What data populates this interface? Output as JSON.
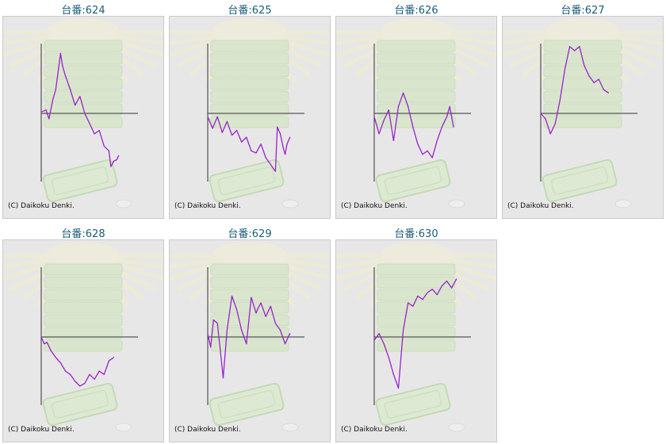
{
  "machines": [
    {
      "title": "台番:624",
      "copyright": "(C) Daikoku Denki."
    },
    {
      "title": "台番:625",
      "copyright": "(C) Daikoku Denki."
    },
    {
      "title": "台番:626",
      "copyright": "(C) Daikoku Denki."
    },
    {
      "title": "台番:627",
      "copyright": "(C) Daikoku Denki."
    },
    {
      "title": "台番:628",
      "copyright": "(C) Daikoku Denki."
    },
    {
      "title": "台番:629",
      "copyright": "(C) Daikoku Denki."
    },
    {
      "title": "台番:630",
      "copyright": "(C) Daikoku Denki."
    }
  ],
  "colors": {
    "line": "#9a22cc",
    "axis": "#333333",
    "background": "#e7e7e7",
    "title": "#1a5c7a"
  },
  "chart_data": [
    {
      "type": "line",
      "title": "台番:624",
      "ylim": [
        -1,
        1
      ],
      "xlim": [
        0,
        1
      ],
      "x": [
        0,
        0.05,
        0.08,
        0.12,
        0.15,
        0.2,
        0.22,
        0.25,
        0.3,
        0.35,
        0.4,
        0.45,
        0.5,
        0.55,
        0.6,
        0.65,
        0.7,
        0.72,
        0.75,
        0.78,
        0.8
      ],
      "y": [
        0.02,
        0.05,
        -0.08,
        0.2,
        0.35,
        0.88,
        0.7,
        0.55,
        0.35,
        0.12,
        0.25,
        0.0,
        -0.15,
        -0.3,
        -0.25,
        -0.48,
        -0.55,
        -0.78,
        -0.7,
        -0.68,
        -0.62
      ]
    },
    {
      "type": "line",
      "title": "台番:625",
      "ylim": [
        -1,
        1
      ],
      "xlim": [
        0,
        1
      ],
      "x": [
        0,
        0.05,
        0.1,
        0.15,
        0.2,
        0.25,
        0.3,
        0.35,
        0.4,
        0.45,
        0.5,
        0.55,
        0.6,
        0.65,
        0.7,
        0.72,
        0.75,
        0.78,
        0.8,
        0.82,
        0.85
      ],
      "y": [
        -0.05,
        -0.22,
        -0.05,
        -0.28,
        -0.12,
        -0.32,
        -0.25,
        -0.42,
        -0.35,
        -0.55,
        -0.58,
        -0.45,
        -0.65,
        -0.75,
        -0.85,
        -0.2,
        -0.3,
        -0.5,
        -0.6,
        -0.45,
        -0.35
      ]
    },
    {
      "type": "line",
      "title": "台番:626",
      "ylim": [
        -1,
        1
      ],
      "xlim": [
        0,
        1
      ],
      "x": [
        0,
        0.05,
        0.1,
        0.15,
        0.2,
        0.25,
        0.3,
        0.35,
        0.4,
        0.45,
        0.5,
        0.55,
        0.6,
        0.65,
        0.7,
        0.75,
        0.78,
        0.82
      ],
      "y": [
        -0.05,
        -0.3,
        -0.1,
        0.05,
        -0.4,
        0.1,
        0.3,
        0.1,
        -0.2,
        -0.45,
        -0.6,
        -0.55,
        -0.65,
        -0.4,
        -0.2,
        -0.05,
        0.1,
        -0.2
      ]
    },
    {
      "type": "line",
      "title": "台番:627",
      "ylim": [
        -1,
        1
      ],
      "xlim": [
        0,
        1
      ],
      "x": [
        0,
        0.05,
        0.1,
        0.15,
        0.2,
        0.25,
        0.3,
        0.35,
        0.4,
        0.45,
        0.5,
        0.55,
        0.6,
        0.65,
        0.7
      ],
      "y": [
        0.0,
        -0.08,
        -0.3,
        -0.15,
        0.2,
        0.65,
        0.98,
        0.92,
        0.98,
        0.7,
        0.55,
        0.45,
        0.5,
        0.35,
        0.3
      ]
    },
    {
      "type": "line",
      "title": "台番:628",
      "ylim": [
        -1,
        1
      ],
      "xlim": [
        0,
        1
      ],
      "x": [
        0,
        0.03,
        0.06,
        0.1,
        0.15,
        0.2,
        0.25,
        0.3,
        0.35,
        0.4,
        0.45,
        0.5,
        0.55,
        0.6,
        0.65,
        0.7,
        0.75
      ],
      "y": [
        0.0,
        -0.1,
        -0.08,
        -0.2,
        -0.3,
        -0.38,
        -0.5,
        -0.55,
        -0.65,
        -0.72,
        -0.68,
        -0.55,
        -0.62,
        -0.5,
        -0.55,
        -0.35,
        -0.3
      ]
    },
    {
      "type": "line",
      "title": "台番:629",
      "ylim": [
        -1,
        1
      ],
      "xlim": [
        0,
        1
      ],
      "x": [
        0,
        0.03,
        0.06,
        0.1,
        0.13,
        0.16,
        0.2,
        0.25,
        0.3,
        0.35,
        0.4,
        0.45,
        0.5,
        0.52,
        0.55,
        0.6,
        0.65,
        0.7,
        0.75,
        0.8,
        0.85
      ],
      "y": [
        0.05,
        -0.15,
        0.25,
        0.2,
        -0.2,
        -0.6,
        0.1,
        0.6,
        0.4,
        0.1,
        -0.1,
        0.58,
        0.35,
        0.42,
        0.5,
        0.3,
        0.45,
        0.2,
        0.1,
        -0.1,
        0.05
      ]
    },
    {
      "type": "line",
      "title": "台番:630",
      "ylim": [
        -1,
        1
      ],
      "xlim": [
        0,
        1
      ],
      "x": [
        0,
        0.05,
        0.1,
        0.15,
        0.2,
        0.25,
        0.3,
        0.35,
        0.4,
        0.45,
        0.5,
        0.55,
        0.6,
        0.65,
        0.7,
        0.75,
        0.8,
        0.85
      ],
      "y": [
        -0.05,
        0.05,
        -0.1,
        -0.3,
        -0.55,
        -0.75,
        0.1,
        0.5,
        0.45,
        0.6,
        0.55,
        0.65,
        0.7,
        0.62,
        0.75,
        0.82,
        0.72,
        0.85
      ]
    }
  ]
}
